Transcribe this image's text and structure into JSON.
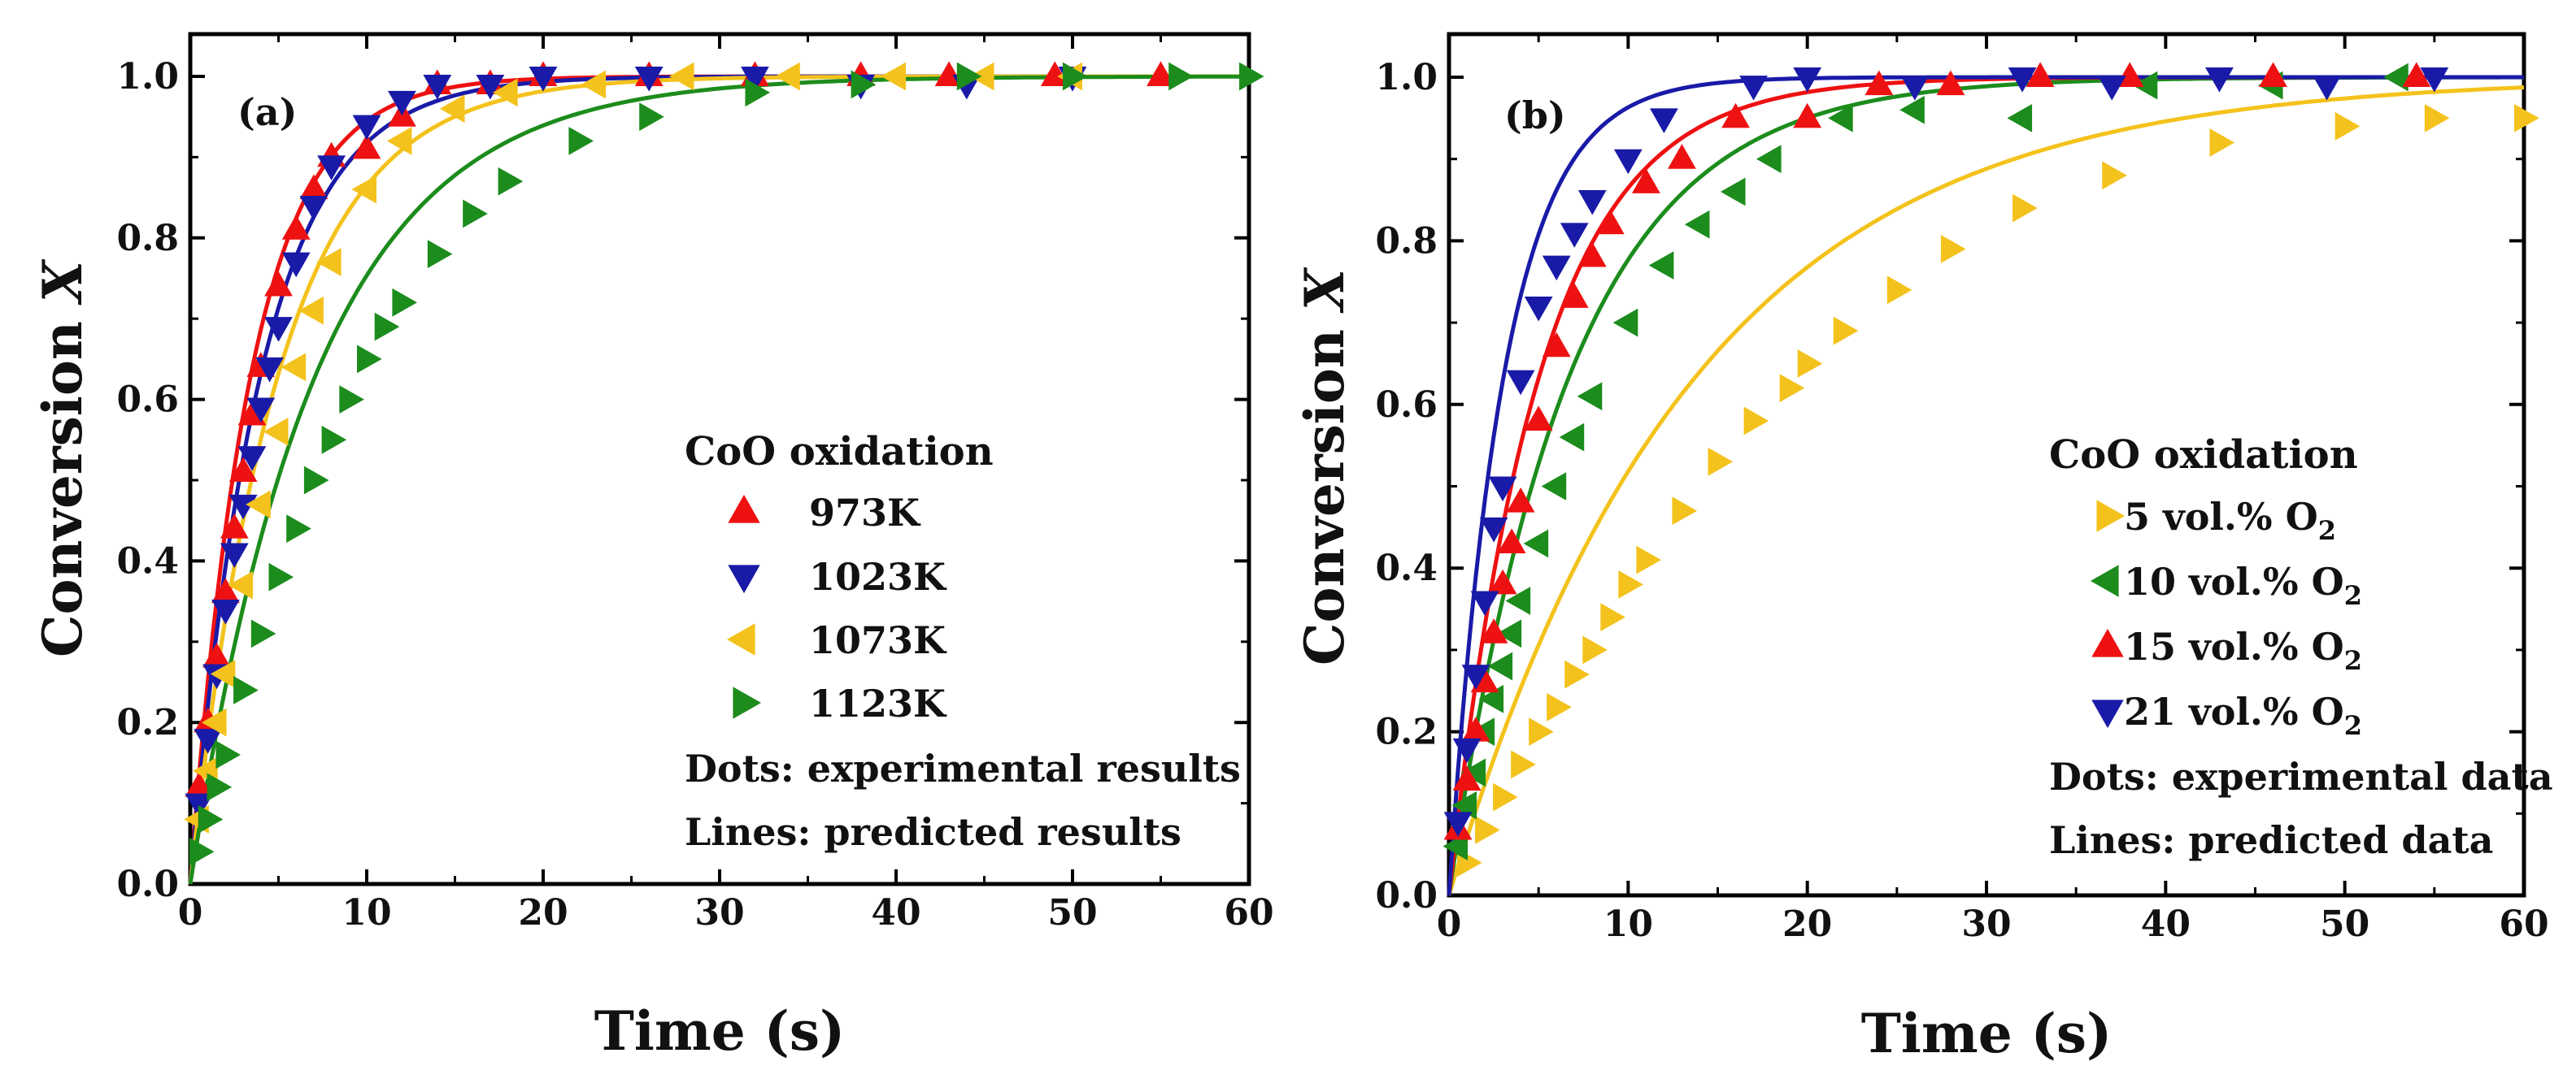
{
  "chart_data": [
    {
      "type": "scatter",
      "panel_label": "(a)",
      "title": "",
      "xlabel": "Time (s)",
      "ylabel_text": "Conversion ",
      "ylabel_var": "X",
      "xlim": [
        0,
        60
      ],
      "ylim": [
        0,
        1.05
      ],
      "xticks": [
        0,
        10,
        20,
        30,
        40,
        50,
        60
      ],
      "yticks": [
        0.0,
        0.2,
        0.4,
        0.6,
        0.8,
        1.0
      ],
      "xtick_labels": [
        "0",
        "10",
        "20",
        "30",
        "40",
        "50",
        "60"
      ],
      "ytick_labels": [
        "0.0",
        "0.2",
        "0.4",
        "0.6",
        "0.8",
        "1.0"
      ],
      "legend_title": "CoO oxidation",
      "legend_notes": [
        "Dots: experimental results",
        "Lines: predicted results"
      ],
      "grid": false,
      "series": [
        {
          "name": "973K",
          "marker": "up",
          "color": "#ee1111",
          "rate_k": 0.29,
          "x": [
            0.5,
            1,
            1.5,
            2,
            2.5,
            3,
            3.5,
            4,
            5,
            6,
            7,
            8,
            10,
            12,
            14,
            17,
            20,
            26,
            32,
            38,
            43,
            49,
            55
          ],
          "y": [
            0.12,
            0.2,
            0.28,
            0.36,
            0.44,
            0.51,
            0.58,
            0.64,
            0.74,
            0.81,
            0.86,
            0.9,
            0.91,
            0.95,
            0.99,
            0.99,
            1.0,
            1.0,
            1.0,
            1.0,
            1.0,
            1.0,
            1.0
          ]
        },
        {
          "name": "1023K",
          "marker": "down",
          "color": "#1a1aa8",
          "rate_k": 0.25,
          "x": [
            0.5,
            1,
            1.5,
            2,
            2.5,
            3,
            3.5,
            4,
            4.5,
            5,
            6,
            7,
            8,
            10,
            12,
            14,
            17,
            20,
            26,
            32,
            38,
            44,
            50
          ],
          "y": [
            0.1,
            0.18,
            0.26,
            0.34,
            0.41,
            0.47,
            0.53,
            0.59,
            0.64,
            0.69,
            0.77,
            0.84,
            0.89,
            0.94,
            0.97,
            0.99,
            0.99,
            1.0,
            1.0,
            1.0,
            0.99,
            0.99,
            1.0
          ]
        },
        {
          "name": "1073K",
          "marker": "left",
          "color": "#f4c21c",
          "rate_k": 0.2,
          "x": [
            0.5,
            1,
            1.5,
            2,
            3,
            4,
            5,
            6,
            7,
            8,
            10,
            12,
            15,
            18,
            23,
            28,
            34,
            40,
            45,
            50
          ],
          "y": [
            0.08,
            0.14,
            0.2,
            0.26,
            0.37,
            0.47,
            0.56,
            0.64,
            0.71,
            0.77,
            0.86,
            0.92,
            0.96,
            0.98,
            0.99,
            1.0,
            1.0,
            1.0,
            1.0,
            1.0
          ]
        },
        {
          "name": "1123K",
          "marker": "right",
          "color": "#1c8c1c",
          "rate_k": 0.14,
          "x": [
            0.5,
            1,
            1.5,
            2,
            3,
            4,
            5,
            6,
            7,
            8,
            9,
            10,
            11,
            12,
            14,
            16,
            18,
            22,
            26,
            32,
            38,
            44,
            50,
            56,
            60
          ],
          "y": [
            0.04,
            0.08,
            0.12,
            0.16,
            0.24,
            0.31,
            0.38,
            0.44,
            0.5,
            0.55,
            0.6,
            0.65,
            0.69,
            0.72,
            0.78,
            0.83,
            0.87,
            0.92,
            0.95,
            0.98,
            0.99,
            1.0,
            1.0,
            1.0,
            1.0
          ]
        }
      ]
    },
    {
      "type": "scatter",
      "panel_label": "(b)",
      "title": "",
      "xlabel": "Time (s)",
      "ylabel_text": "Conversion ",
      "ylabel_var": "X",
      "xlim": [
        0,
        60
      ],
      "ylim": [
        0,
        1.05
      ],
      "xticks": [
        0,
        10,
        20,
        30,
        40,
        50,
        60
      ],
      "yticks": [
        0.0,
        0.2,
        0.4,
        0.6,
        0.8,
        1.0
      ],
      "xtick_labels": [
        "0",
        "10",
        "20",
        "30",
        "40",
        "50",
        "60"
      ],
      "ytick_labels": [
        "0.0",
        "0.2",
        "0.4",
        "0.6",
        "0.8",
        "1.0"
      ],
      "legend_title": "CoO oxidation",
      "legend_notes": [
        "Dots: experimental data",
        "Lines: predicted data"
      ],
      "grid": false,
      "series": [
        {
          "name": "5 vol.% O",
          "name_sub": "2",
          "marker": "right",
          "color": "#f4c21c",
          "rate_k": 0.073,
          "x": [
            1,
            2,
            3,
            4,
            5,
            6,
            7,
            8,
            9,
            10,
            11,
            13,
            15,
            17,
            19,
            20,
            22,
            25,
            28,
            32,
            37,
            43,
            50,
            55,
            60
          ],
          "y": [
            0.04,
            0.08,
            0.12,
            0.16,
            0.2,
            0.23,
            0.27,
            0.3,
            0.34,
            0.38,
            0.41,
            0.47,
            0.53,
            0.58,
            0.62,
            0.65,
            0.69,
            0.74,
            0.79,
            0.84,
            0.88,
            0.92,
            0.94,
            0.95,
            0.95
          ]
        },
        {
          "name": "10 vol.% O",
          "name_sub": "2",
          "marker": "left",
          "color": "#1c8c1c",
          "rate_k": 0.15,
          "x": [
            0.5,
            1,
            1.5,
            2,
            2.5,
            3,
            3.5,
            4,
            5,
            6,
            7,
            8,
            10,
            12,
            14,
            16,
            18,
            22,
            26,
            32,
            39,
            46,
            53
          ],
          "y": [
            0.06,
            0.11,
            0.15,
            0.2,
            0.24,
            0.28,
            0.32,
            0.36,
            0.43,
            0.5,
            0.56,
            0.61,
            0.7,
            0.77,
            0.82,
            0.86,
            0.9,
            0.95,
            0.96,
            0.95,
            0.99,
            0.99,
            1.0
          ]
        },
        {
          "name": "15 vol.% O",
          "name_sub": "2",
          "marker": "up",
          "color": "#ee1111",
          "rate_k": 0.2,
          "x": [
            0.5,
            1,
            1.5,
            2,
            2.5,
            3,
            3.5,
            4,
            5,
            6,
            7,
            8,
            9,
            11,
            13,
            16,
            20,
            24,
            28,
            33,
            38,
            46,
            54
          ],
          "y": [
            0.08,
            0.14,
            0.2,
            0.26,
            0.32,
            0.38,
            0.43,
            0.48,
            0.58,
            0.67,
            0.73,
            0.78,
            0.82,
            0.87,
            0.9,
            0.95,
            0.95,
            0.99,
            0.99,
            1.0,
            1.0,
            1.0,
            1.0
          ]
        },
        {
          "name": "21 vol.% O",
          "name_sub": "2",
          "marker": "down",
          "color": "#1a1aa8",
          "rate_k": 0.33,
          "x": [
            0.5,
            1,
            1.5,
            2,
            2.5,
            3,
            4,
            5,
            6,
            7,
            8,
            10,
            12,
            17,
            20,
            26,
            32,
            37,
            43,
            49,
            55
          ],
          "y": [
            0.09,
            0.18,
            0.27,
            0.36,
            0.45,
            0.5,
            0.63,
            0.72,
            0.77,
            0.81,
            0.85,
            0.9,
            0.95,
            0.99,
            1.0,
            0.99,
            1.0,
            0.99,
            1.0,
            0.99,
            1.0
          ]
        }
      ]
    }
  ]
}
